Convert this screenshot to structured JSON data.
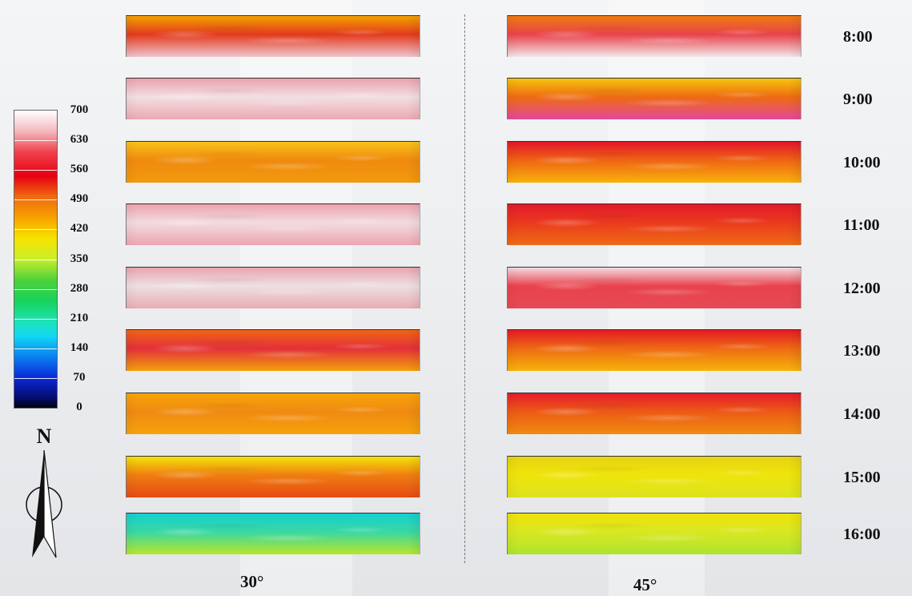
{
  "legend": {
    "ticks": [
      "700",
      "630",
      "560",
      "490",
      "420",
      "350",
      "280",
      "210",
      "140",
      "70",
      "0"
    ]
  },
  "north_label": "N",
  "columns": [
    "30°",
    "45°"
  ],
  "times": [
    "8:00",
    "9:00",
    "10:00",
    "11:00",
    "12:00",
    "13:00",
    "14:00",
    "15:00",
    "16:00"
  ],
  "colors": {
    "white": "#ffffff",
    "red": "#e60012",
    "orange": "#f39800",
    "yellow": "#fff100",
    "green": "#16d35a",
    "cyan": "#11d7f5",
    "blue": "#0a28d8",
    "black": "#000013"
  },
  "strips_30": [
    {
      "top": "#f5a100",
      "mid": "#e23a1e",
      "bottom": "#f0c4cc"
    },
    {
      "top": "#e9a2ac",
      "mid": "#f2dfe2",
      "bottom": "#eba9b2"
    },
    {
      "top": "#f9c21a",
      "mid": "#ef8a0e",
      "bottom": "#f29a0e"
    },
    {
      "top": "#eda3ad",
      "mid": "#f2dcdf",
      "bottom": "#eba6b0"
    },
    {
      "top": "#e8a4ae",
      "mid": "#ede0e2",
      "bottom": "#eaabb3"
    },
    {
      "top": "#f06414",
      "mid": "#e3303a",
      "bottom": "#f3a10a"
    },
    {
      "top": "#f7a508",
      "mid": "#f08a12",
      "bottom": "#f6a20a"
    },
    {
      "top": "#f4e30a",
      "mid": "#ef7e10",
      "bottom": "#e64a14"
    },
    {
      "top": "#14cfd2",
      "mid": "#39d8a2",
      "bottom": "#b8e52a"
    }
  ],
  "strips_45": [
    {
      "top": "#f07a10",
      "mid": "#e8434c",
      "bottom": "#f2e6e9"
    },
    {
      "top": "#f6c40e",
      "mid": "#ee6b12",
      "bottom": "#e4489a"
    },
    {
      "top": "#e3162a",
      "mid": "#ef6414",
      "bottom": "#f8b20a"
    },
    {
      "top": "#e31a2a",
      "mid": "#ea3a1e",
      "bottom": "#ee6c14"
    },
    {
      "top": "#f3dbe0",
      "mid": "#e9424c",
      "bottom": "#e64a54"
    },
    {
      "top": "#e41a24",
      "mid": "#ee6a14",
      "bottom": "#f6b40a"
    },
    {
      "top": "#e51c2a",
      "mid": "#ec5a16",
      "bottom": "#f18c10"
    },
    {
      "top": "#e7d214",
      "mid": "#efe40a",
      "bottom": "#dce320"
    },
    {
      "top": "#efe20a",
      "mid": "#d9e722",
      "bottom": "#aee42e"
    }
  ]
}
